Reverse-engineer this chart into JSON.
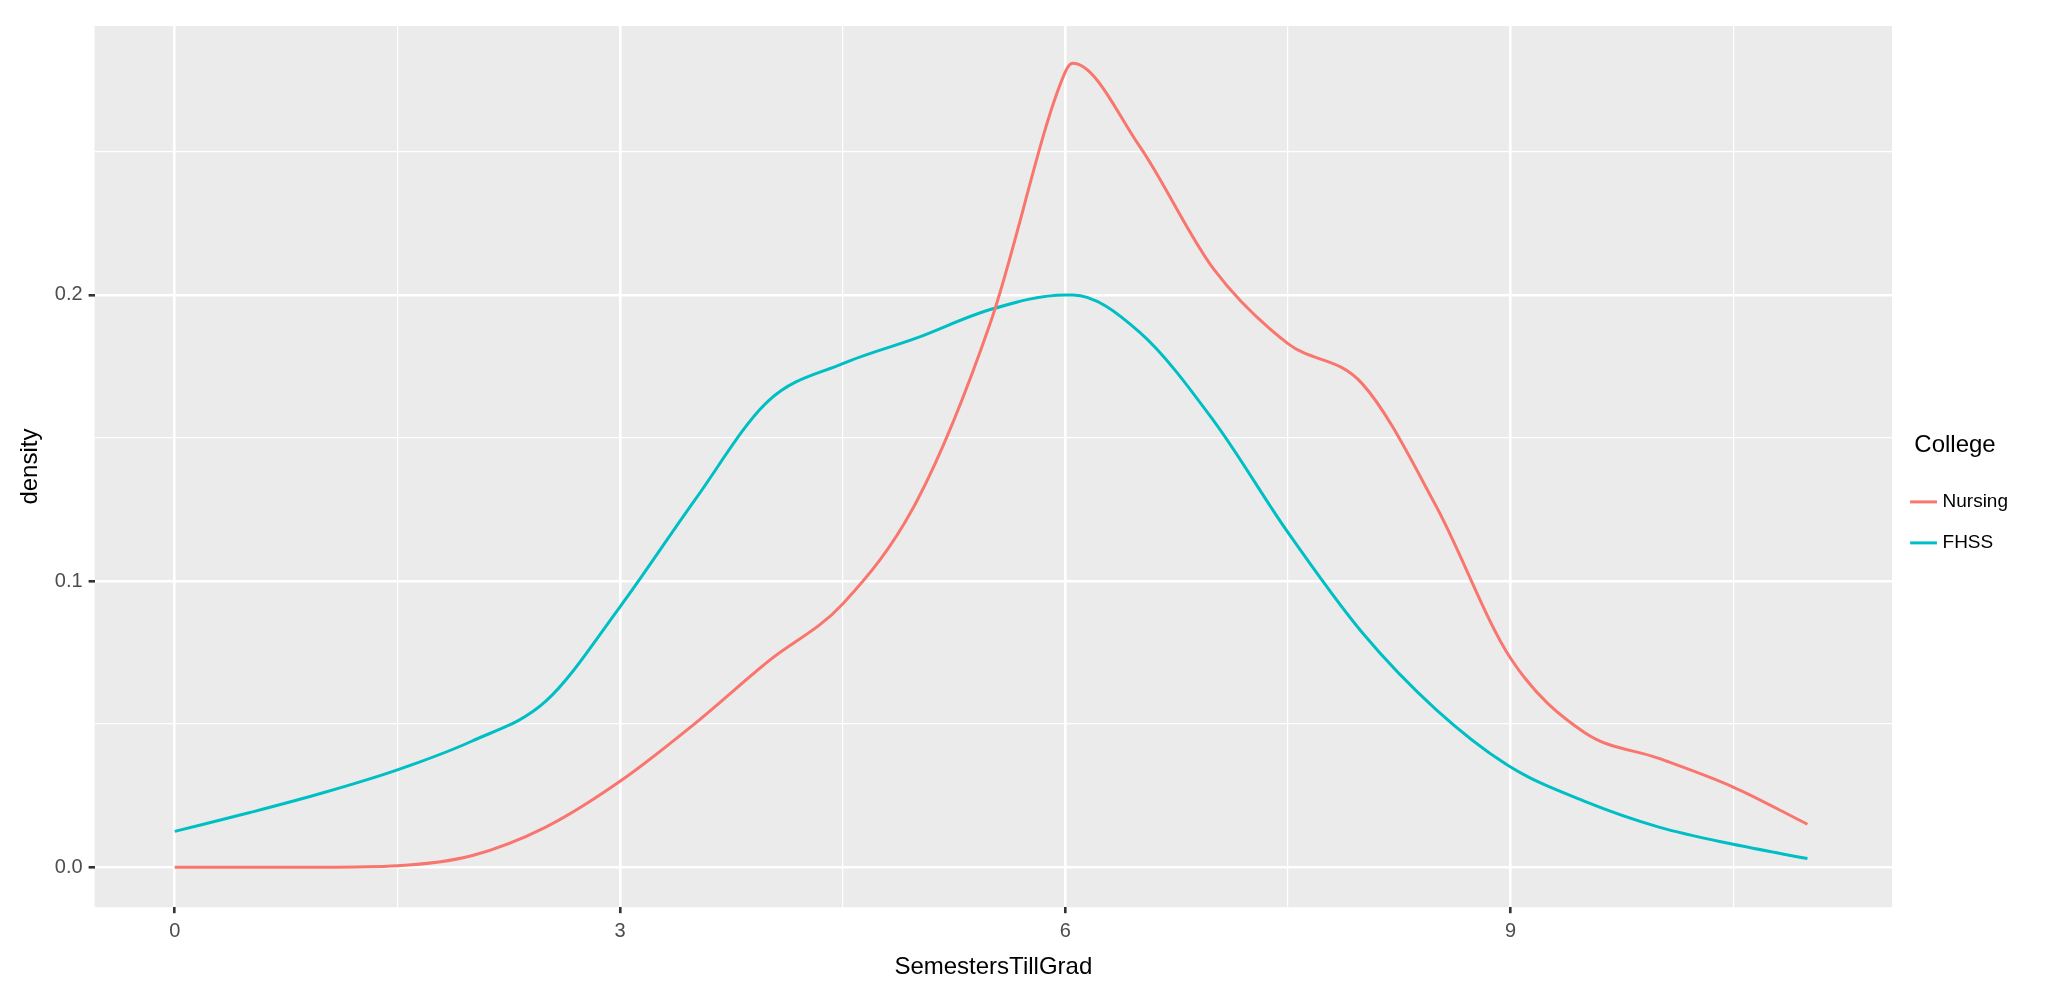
{
  "chart_data": {
    "type": "line",
    "xlabel": "SemestersTillGrad",
    "ylabel": "density",
    "legend_title": "College",
    "legend": "right",
    "grid": true,
    "marker": "none",
    "line_style": "solid",
    "xlim": [
      -0.54,
      11.57
    ],
    "ylim": [
      -0.014,
      0.294
    ],
    "xticks": [
      0,
      {
        "value": 1.5,
        "label": null
      },
      3,
      {
        "value": 4.5,
        "label": null
      },
      6,
      {
        "value": 7.5,
        "label": null
      },
      9,
      {
        "value": 10.5,
        "label": null
      }
    ],
    "yticks": [
      {
        "value": 0,
        "label": "0.0"
      },
      {
        "value": 0.05,
        "label": null
      },
      0.1,
      {
        "value": 0.15,
        "label": null
      },
      0.2,
      {
        "value": 0.25,
        "label": null
      }
    ],
    "x": [
      0,
      0.5,
      1,
      1.5,
      2,
      2.5,
      3,
      3.5,
      4,
      4.5,
      5,
      5.5,
      6,
      6.05,
      6.5,
      7,
      7.5,
      8,
      8.5,
      9,
      9.5,
      10,
      10.5,
      11
    ],
    "series": [
      {
        "name": "Nursing",
        "color": "#f8766d",
        "values": [
          0,
          0,
          0,
          0.0005,
          0.004,
          0.014,
          0.03,
          0.05,
          0.072,
          0.092,
          0.128,
          0.191,
          0.278,
          0.281,
          0.252,
          0.209,
          0.183,
          0.169,
          0.126,
          0.073,
          0.047,
          0.038,
          0.028,
          0.015
        ]
      },
      {
        "name": "FHSS",
        "color": "#00bfc4",
        "values": [
          0.0125,
          0.019,
          0.026,
          0.034,
          0.044,
          0.058,
          0.091,
          0.128,
          0.163,
          0.176,
          0.185,
          0.195,
          0.2,
          0.2,
          0.187,
          0.156,
          0.117,
          0.082,
          0.055,
          0.035,
          0.023,
          0.014,
          0.008,
          0.003
        ]
      }
    ]
  }
}
